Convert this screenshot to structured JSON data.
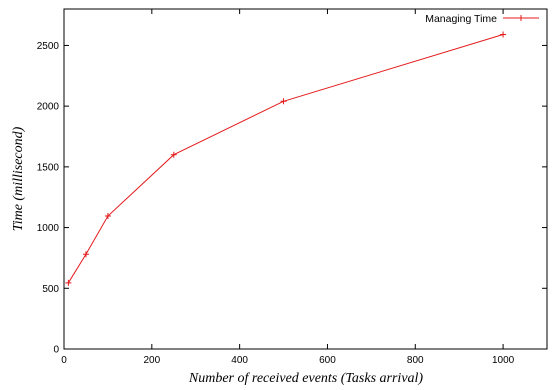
{
  "chart_data": {
    "type": "line",
    "title": "",
    "xlabel": "Number of received events (Tasks arrival)",
    "ylabel": "Time (millisecond)",
    "xlim": [
      0,
      1100
    ],
    "ylim": [
      0,
      2800
    ],
    "xticks": [
      0,
      200,
      400,
      600,
      800,
      1000
    ],
    "yticks": [
      0,
      500,
      1000,
      1500,
      2000,
      2500
    ],
    "grid": false,
    "legend_position": "top-right",
    "series": [
      {
        "name": "Managing Time",
        "color": "#e41a1c",
        "marker": "plus",
        "x": [
          10,
          50,
          100,
          250,
          500,
          1000
        ],
        "y": [
          545,
          780,
          1095,
          1600,
          2040,
          2590
        ]
      }
    ]
  }
}
